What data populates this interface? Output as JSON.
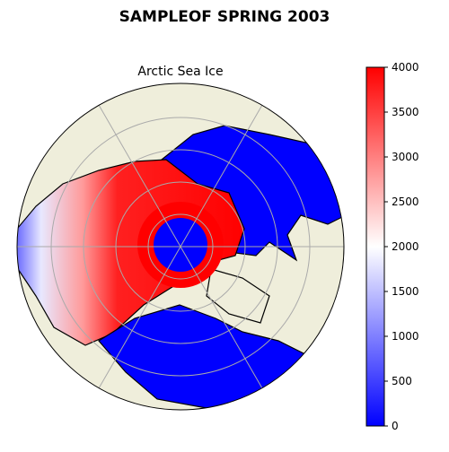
{
  "title": "SAMPLEOF SPRING 2003",
  "map_title": "Arctic Sea Ice",
  "colorbar": {
    "lim": [
      0,
      4000
    ],
    "ticks": [
      0,
      500,
      1000,
      1500,
      2000,
      2500,
      3000,
      3500,
      4000
    ],
    "colors": [
      "#0000ff",
      "#ffffff",
      "#ff0000"
    ]
  }
}
